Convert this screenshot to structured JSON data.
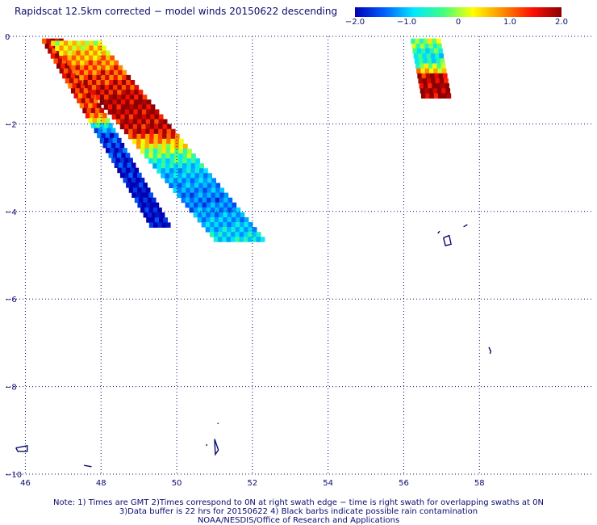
{
  "header": {
    "title": "Rapidscat 12.5km corrected − model winds 20150622 descending"
  },
  "colorbar": {
    "ticks": [
      "−2.0",
      "−1.0",
      "0",
      "1.0",
      "2.0"
    ],
    "range": [
      -2.0,
      2.0
    ]
  },
  "notes": {
    "line1": "Note: 1) Times are GMT 2)Times correspond to 0N at right swath edge − time is right swath for overlapping swaths at 0N",
    "line2": "3)Data buffer is 22 hrs for 20150622 4) Black barbs indicate possible rain contamination",
    "line3": "NOAA/NESDIS/Office of Research and Applications"
  },
  "chart_data": {
    "type": "heatmap",
    "title": "Rapidscat 12.5km corrected − model winds 20150622 descending",
    "xlim": [
      45.5,
      61.0
    ],
    "ylim": [
      -10,
      0
    ],
    "xticks": [
      46,
      48,
      50,
      52,
      54,
      56,
      58
    ],
    "xtick_labels": [
      "46",
      "48",
      "50",
      "52",
      "54",
      "56",
      "58"
    ],
    "yticks": [
      0,
      -2,
      -4,
      -6,
      -8,
      -10
    ],
    "ytick_labels": [
      "0",
      "−2",
      "−4",
      "−6",
      "−8",
      "−10"
    ],
    "grid": true,
    "colorscale_range": [
      -2.0,
      2.0
    ],
    "cell_size_deg": 0.1125,
    "swaths": [
      {
        "name": "",
        "start": [
          46.72,
          -0.05
        ],
        "end": [
          49.55,
          -4.25
        ],
        "width": 0.55,
        "profile": [
          [
            0.0,
            1.8
          ],
          [
            0.4,
            1.5
          ],
          [
            0.5,
            -1.6
          ],
          [
            0.8,
            -2.0
          ],
          [
            1.0,
            -2.0
          ]
        ]
      },
      {
        "name": "",
        "start": [
          47.35,
          -0.1
        ],
        "end": [
          51.65,
          -4.58
        ],
        "width": 1.4,
        "profile": [
          [
            0.0,
            0.6
          ],
          [
            0.15,
            1.4
          ],
          [
            0.3,
            2.0
          ],
          [
            0.45,
            1.8
          ],
          [
            0.55,
            0.2
          ],
          [
            0.65,
            -0.8
          ],
          [
            0.8,
            -1.3
          ],
          [
            1.0,
            -0.6
          ]
        ]
      },
      {
        "name": "",
        "start": [
          56.58,
          -0.05
        ],
        "end": [
          56.85,
          -1.3
        ],
        "width": 0.75,
        "profile": [
          [
            0.0,
            0.2
          ],
          [
            0.3,
            -0.6
          ],
          [
            0.5,
            0.4
          ],
          [
            0.65,
            2.0
          ],
          [
            1.0,
            2.0
          ]
        ]
      }
    ],
    "coastlines": [
      [
        [
          45.75,
          -9.4
        ],
        [
          46.05,
          -9.35
        ],
        [
          46.05,
          -9.48
        ],
        [
          45.8,
          -9.48
        ],
        [
          45.75,
          -9.4
        ]
      ],
      [
        [
          47.55,
          -9.8
        ],
        [
          47.75,
          -9.83
        ]
      ],
      [
        [
          51.0,
          -9.2
        ],
        [
          51.1,
          -9.45
        ],
        [
          51.02,
          -9.55
        ],
        [
          51.0,
          -9.2
        ]
      ],
      [
        [
          51.08,
          -8.85
        ],
        [
          51.1,
          -8.83
        ]
      ],
      [
        [
          50.78,
          -9.35
        ],
        [
          50.8,
          -9.32
        ]
      ],
      [
        [
          57.05,
          -4.6
        ],
        [
          57.2,
          -4.55
        ],
        [
          57.25,
          -4.75
        ],
        [
          57.1,
          -4.78
        ],
        [
          57.05,
          -4.6
        ]
      ],
      [
        [
          57.58,
          -4.35
        ],
        [
          57.68,
          -4.3
        ]
      ],
      [
        [
          56.9,
          -4.5
        ],
        [
          56.95,
          -4.45
        ]
      ],
      [
        [
          58.25,
          -7.1
        ],
        [
          58.3,
          -7.2
        ],
        [
          58.28,
          -7.25
        ]
      ]
    ]
  }
}
